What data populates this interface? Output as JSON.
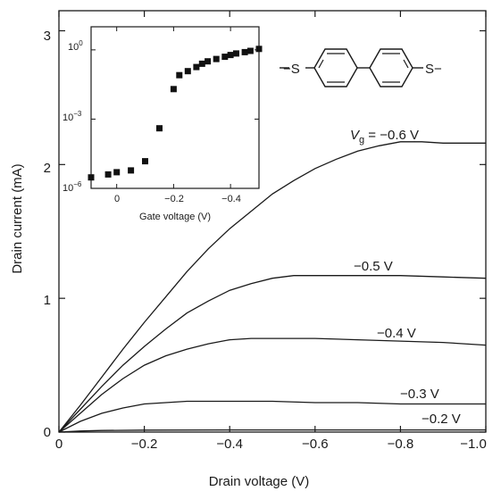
{
  "chart_data": [
    {
      "type": "line",
      "title": "",
      "xlabel": "Drain voltage (V)",
      "ylabel": "Drain current (mA)",
      "xlim": [
        0,
        -1.0
      ],
      "ylim": [
        0,
        3.15
      ],
      "x_ticks": [
        0,
        -0.2,
        -0.4,
        -0.6,
        -0.8,
        -1.0
      ],
      "x_tick_labels": [
        "0",
        "−0.2",
        "−0.4",
        "−0.6",
        "−0.8",
        "−1.0"
      ],
      "y_ticks": [
        0,
        1,
        2,
        3
      ],
      "y_tick_labels": [
        "0",
        "1",
        "2",
        "3"
      ],
      "grid": false,
      "series": [
        {
          "label": "−0.6 V",
          "x": [
            0,
            -0.05,
            -0.1,
            -0.15,
            -0.2,
            -0.25,
            -0.3,
            -0.35,
            -0.4,
            -0.45,
            -0.5,
            -0.55,
            -0.6,
            -0.65,
            -0.7,
            -0.75,
            -0.8,
            -0.85,
            -0.9,
            -0.95,
            -1.0
          ],
          "values": [
            0,
            0.2,
            0.41,
            0.62,
            0.82,
            1.01,
            1.2,
            1.37,
            1.52,
            1.65,
            1.78,
            1.88,
            1.97,
            2.04,
            2.1,
            2.14,
            2.17,
            2.17,
            2.16,
            2.16,
            2.16
          ]
        },
        {
          "label": "−0.5 V",
          "x": [
            0,
            -0.05,
            -0.1,
            -0.15,
            -0.2,
            -0.25,
            -0.3,
            -0.35,
            -0.4,
            -0.45,
            -0.5,
            -0.55,
            -0.6,
            -0.7,
            -0.8,
            -0.9,
            -1.0
          ],
          "values": [
            0,
            0.17,
            0.34,
            0.5,
            0.64,
            0.77,
            0.89,
            0.98,
            1.06,
            1.11,
            1.15,
            1.17,
            1.17,
            1.17,
            1.17,
            1.16,
            1.15
          ]
        },
        {
          "label": "−0.4 V",
          "x": [
            0,
            -0.05,
            -0.1,
            -0.15,
            -0.2,
            -0.25,
            -0.3,
            -0.35,
            -0.4,
            -0.45,
            -0.5,
            -0.6,
            -0.7,
            -0.8,
            -0.9,
            -1.0
          ],
          "values": [
            0,
            0.14,
            0.28,
            0.4,
            0.5,
            0.57,
            0.62,
            0.66,
            0.69,
            0.7,
            0.7,
            0.7,
            0.69,
            0.68,
            0.67,
            0.65
          ]
        },
        {
          "label": "−0.3 V",
          "x": [
            0,
            -0.05,
            -0.1,
            -0.15,
            -0.2,
            -0.25,
            -0.3,
            -0.4,
            -0.5,
            -0.6,
            -0.7,
            -0.8,
            -0.9,
            -1.0
          ],
          "values": [
            0,
            0.08,
            0.14,
            0.18,
            0.21,
            0.22,
            0.23,
            0.23,
            0.23,
            0.22,
            0.22,
            0.21,
            0.21,
            0.21
          ]
        },
        {
          "label": "−0.2 V",
          "x": [
            0,
            -0.05,
            -0.1,
            -0.2,
            -0.4,
            -0.6,
            -0.8,
            -1.0
          ],
          "values": [
            0,
            0.008,
            0.012,
            0.015,
            0.016,
            0.016,
            0.016,
            0.016
          ]
        }
      ],
      "annotations": [
        {
          "prefix": "V",
          "subscript": "g",
          "text": " = −0.6 V",
          "series": 0
        },
        {
          "text": "−0.5 V",
          "series": 1
        },
        {
          "text": "−0.4 V",
          "series": 2
        },
        {
          "text": "−0.3 V",
          "series": 3
        },
        {
          "text": "−0.2 V",
          "series": 4
        }
      ]
    },
    {
      "type": "scatter",
      "title": "",
      "xlabel": "Gate voltage (V)",
      "ylabel": "",
      "scale_y": "log",
      "xlim": [
        0.09,
        -0.5
      ],
      "ylim": [
        1e-06,
        10
      ],
      "x_ticks": [
        0,
        -0.2,
        -0.4
      ],
      "x_tick_labels": [
        "0",
        "−0.2",
        "−0.4"
      ],
      "y_ticks": [
        1e-06,
        0.001,
        1
      ],
      "y_tick_labels": [
        {
          "base": "10",
          "exp": "−6"
        },
        {
          "base": "10",
          "exp": "−3"
        },
        {
          "base": "10",
          "exp": "0"
        }
      ],
      "grid": false,
      "x": [
        0.09,
        0.03,
        0.0,
        -0.05,
        -0.1,
        -0.15,
        -0.2,
        -0.22,
        -0.25,
        -0.28,
        -0.3,
        -0.32,
        -0.35,
        -0.38,
        -0.4,
        -0.42,
        -0.45,
        -0.47,
        -0.5
      ],
      "values": [
        3e-06,
        4e-06,
        5e-06,
        6e-06,
        1.5e-05,
        0.0004,
        0.02,
        0.08,
        0.12,
        0.18,
        0.25,
        0.32,
        0.4,
        0.5,
        0.6,
        0.7,
        0.8,
        0.9,
        1.1
      ]
    }
  ],
  "molecule": {
    "left_group": "−S",
    "right_group": "S−"
  }
}
